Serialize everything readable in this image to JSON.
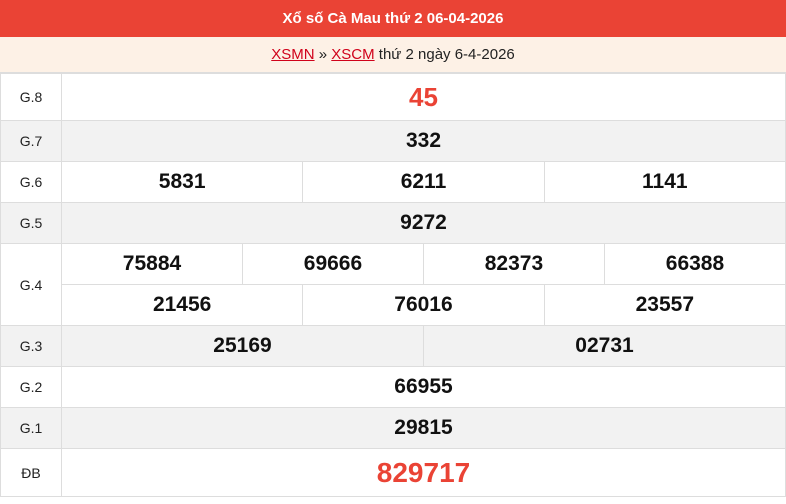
{
  "header": {
    "title": "Xổ số Cà Mau thứ 2 06-04-2026"
  },
  "breadcrumb": {
    "link1": "XSMN",
    "sep": "»",
    "link2": "XSCM",
    "text": "thứ 2 ngày 6-4-2026"
  },
  "prizes": {
    "g8": {
      "label": "G.8",
      "values": [
        "45"
      ]
    },
    "g7": {
      "label": "G.7",
      "values": [
        "332"
      ]
    },
    "g6": {
      "label": "G.6",
      "values": [
        "5831",
        "6211",
        "1141"
      ]
    },
    "g5": {
      "label": "G.5",
      "values": [
        "9272"
      ]
    },
    "g4": {
      "label": "G.4",
      "values": [
        "75884",
        "69666",
        "82373",
        "66388",
        "21456",
        "76016",
        "23557"
      ]
    },
    "g3": {
      "label": "G.3",
      "values": [
        "25169",
        "02731"
      ]
    },
    "g2": {
      "label": "G.2",
      "values": [
        "66955"
      ]
    },
    "g1": {
      "label": "G.1",
      "values": [
        "29815"
      ]
    },
    "db": {
      "label": "ĐB",
      "values": [
        "829717"
      ]
    }
  },
  "colors": {
    "accent": "#ea4335",
    "subheader_bg": "#fdf1e6"
  }
}
